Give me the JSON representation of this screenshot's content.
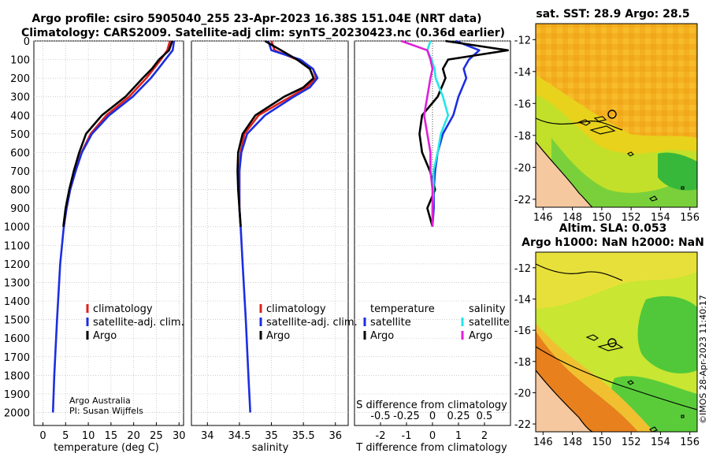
{
  "titles": {
    "line1": "Argo profile: csiro 5905040_255 23-Apr-2023 16.38S 151.04E (NRT data)",
    "line2": "Climatology: CARS2009. Satellite-adj clim: synTS_20230423.nc (0.36d earlier)"
  },
  "watermark": "©IMOS 28-Apr-2023 11:40:17",
  "credit": {
    "line1": "Argo Australia",
    "line2": "PI: Susan Wijffels"
  },
  "colors": {
    "climatology": "#e0201a",
    "satellite": "#1c2ee0",
    "argo": "#000000",
    "sal_sat": "#22e6e6",
    "sal_argo": "#e020d8",
    "land": "#f5c8a0",
    "coast": "#000000"
  },
  "chart_data": [
    {
      "type": "line",
      "id": "temperature",
      "xlabel": "temperature (deg C)",
      "ylabel": "",
      "xlim": [
        -2,
        31
      ],
      "ylim": [
        2070,
        0
      ],
      "xticks": [
        0,
        5,
        10,
        15,
        20,
        25,
        30
      ],
      "yticks": [
        0,
        100,
        200,
        300,
        400,
        500,
        600,
        700,
        800,
        900,
        1000,
        1100,
        1200,
        1300,
        1400,
        1500,
        1600,
        1700,
        1800,
        1900,
        2000
      ],
      "legend": [
        "climatology",
        "satellite-adj. clim.",
        "Argo"
      ],
      "series": [
        {
          "name": "climatology",
          "depth": [
            0,
            50,
            100,
            150,
            200,
            300,
            400,
            500,
            600,
            700,
            800,
            900,
            1000
          ],
          "values": [
            28.0,
            27.4,
            26.0,
            24.4,
            22.8,
            19.0,
            14.0,
            10.5,
            8.5,
            7.2,
            6.0,
            5.2,
            4.6
          ]
        },
        {
          "name": "satellite-adj. clim.",
          "depth": [
            0,
            50,
            100,
            150,
            200,
            300,
            400,
            500,
            600,
            700,
            800,
            900,
            1000,
            1200,
            1500,
            1800,
            2000
          ],
          "values": [
            28.9,
            28.6,
            27.0,
            25.4,
            23.8,
            19.8,
            14.6,
            10.8,
            8.6,
            7.2,
            6.0,
            5.2,
            4.6,
            3.8,
            3.1,
            2.5,
            2.2
          ]
        },
        {
          "name": "Argo",
          "depth": [
            0,
            50,
            100,
            150,
            200,
            300,
            400,
            500,
            600,
            700,
            800,
            900,
            1000
          ],
          "values": [
            28.5,
            27.8,
            25.6,
            24.0,
            22.0,
            18.2,
            13.0,
            9.5,
            8.0,
            6.8,
            5.8,
            5.0,
            4.5
          ]
        }
      ]
    },
    {
      "type": "line",
      "id": "salinity",
      "xlabel": "salinity",
      "ylabel": "",
      "xlim": [
        33.75,
        36.2
      ],
      "ylim": [
        2070,
        0
      ],
      "xticks": [
        34,
        34.5,
        35,
        35.5,
        36
      ],
      "legend": [
        "climatology",
        "satellite-adj. clim.",
        "Argo"
      ],
      "series": [
        {
          "name": "climatology",
          "depth": [
            0,
            50,
            100,
            150,
            200,
            250,
            300,
            400,
            500,
            600,
            700,
            800,
            900,
            1000
          ],
          "values": [
            35.0,
            35.05,
            35.4,
            35.65,
            35.7,
            35.55,
            35.3,
            34.8,
            34.58,
            34.52,
            34.5,
            34.5,
            34.5,
            34.52
          ]
        },
        {
          "name": "satellite-adj. clim.",
          "depth": [
            0,
            50,
            100,
            150,
            200,
            250,
            300,
            400,
            500,
            600,
            700,
            800,
            900,
            1000,
            1200,
            1500,
            1800,
            2000
          ],
          "values": [
            34.95,
            35.0,
            35.45,
            35.65,
            35.72,
            35.6,
            35.35,
            34.9,
            34.62,
            34.53,
            34.5,
            34.5,
            34.5,
            34.52,
            34.55,
            34.6,
            34.64,
            34.67
          ]
        },
        {
          "name": "Argo",
          "depth": [
            0,
            30,
            60,
            100,
            150,
            200,
            250,
            300,
            400,
            500,
            600,
            700,
            800,
            900,
            1000
          ],
          "values": [
            34.9,
            35.05,
            35.2,
            35.4,
            35.6,
            35.66,
            35.5,
            35.2,
            34.75,
            34.55,
            34.48,
            34.47,
            34.48,
            34.5,
            34.52
          ]
        }
      ]
    },
    {
      "type": "line",
      "id": "difference",
      "xlabel": "T difference from climatology",
      "xlabel2": "S difference from climatology",
      "xlim": [
        -3,
        3
      ],
      "ylim": [
        2070,
        0
      ],
      "xticks": [
        -2,
        -1,
        0,
        1,
        2
      ],
      "sticks": [
        -0.5,
        -0.25,
        0,
        0.25,
        0.5
      ],
      "sticklabels": [
        "-0.5",
        "-0.25",
        "0",
        "0.25",
        "0.5"
      ],
      "legend_title_t": "temperature",
      "legend_title_s": "salinity",
      "legend_t": [
        "satellite",
        "Argo"
      ],
      "legend_s": [
        "satellite",
        "Argo"
      ],
      "series": [
        {
          "name": "T satellite",
          "depth": [
            0,
            50,
            100,
            150,
            200,
            300,
            400,
            500,
            600,
            700,
            800,
            900,
            1000
          ],
          "values": [
            0.9,
            1.8,
            1.4,
            1.2,
            1.3,
            1.0,
            0.8,
            0.4,
            0.2,
            0.1,
            0.05,
            0.05,
            0.0
          ]
        },
        {
          "name": "T Argo",
          "depth": [
            0,
            50,
            100,
            150,
            200,
            300,
            400,
            500,
            600,
            700,
            800,
            900,
            1000
          ],
          "values": [
            0.5,
            2.9,
            0.6,
            0.4,
            0.5,
            0.2,
            -0.4,
            -0.5,
            -0.4,
            -0.1,
            0.1,
            -0.2,
            0.0
          ]
        },
        {
          "name": "S satellite",
          "depth": [
            0,
            50,
            100,
            150,
            200,
            300,
            400,
            500,
            600,
            700,
            800,
            900,
            1000
          ],
          "values": [
            -0.02,
            -0.05,
            -0.01,
            0.02,
            0.03,
            0.1,
            0.15,
            0.08,
            0.05,
            0.01,
            0.01,
            0.0,
            0.0
          ]
        },
        {
          "name": "S Argo",
          "depth": [
            0,
            50,
            100,
            150,
            200,
            300,
            400,
            500,
            600,
            700,
            800,
            900,
            1000
          ],
          "values": [
            -0.3,
            -0.05,
            -0.02,
            0.0,
            -0.02,
            -0.05,
            -0.08,
            -0.05,
            -0.02,
            -0.02,
            0.0,
            0.0,
            0.0
          ]
        }
      ]
    },
    {
      "type": "heatmap",
      "id": "sst-map",
      "title": "sat. SST: 28.9 Argo: 28.5",
      "xticks": [
        146,
        148,
        150,
        152,
        154,
        156
      ],
      "yticks": [
        -12,
        -14,
        -16,
        -18,
        -20,
        -22
      ],
      "xlim": [
        145.5,
        156.5
      ],
      "ylim": [
        -11,
        -22.5
      ],
      "marker": [
        151.04,
        -16.38
      ]
    },
    {
      "type": "heatmap",
      "id": "sla-map",
      "title": "Altim. SLA: 0.053",
      "title2": "Argo h1000: NaN h2000: NaN",
      "xticks": [
        146,
        148,
        150,
        152,
        154,
        156
      ],
      "yticks": [
        -12,
        -14,
        -16,
        -18,
        -20,
        -22
      ],
      "xlim": [
        145.5,
        156.5
      ],
      "ylim": [
        -11,
        -22.5
      ],
      "marker": [
        151.04,
        -16.38
      ]
    }
  ]
}
